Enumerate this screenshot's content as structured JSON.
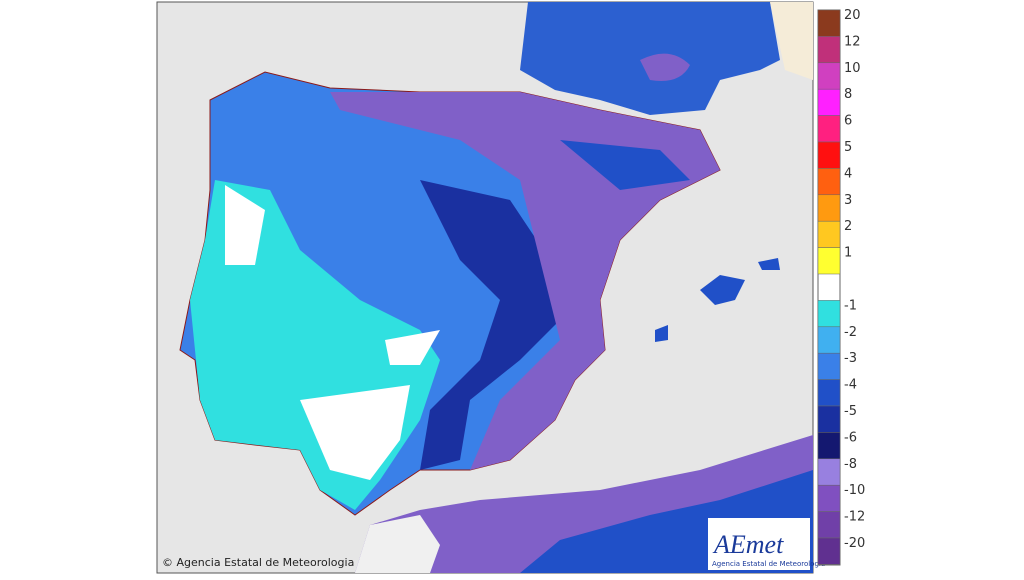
{
  "map": {
    "copyright": "© Agencia Estatal de Meteorologia",
    "logo": {
      "name": "AEmet",
      "subtitle": "Agencia Estatal de Meteorología"
    }
  },
  "legend": {
    "items": [
      {
        "label": "20",
        "color": "#8b3a1e"
      },
      {
        "label": "12",
        "color": "#c0307a"
      },
      {
        "label": "10",
        "color": "#d040c0"
      },
      {
        "label": "8",
        "color": "#ff20ff"
      },
      {
        "label": "6",
        "color": "#ff2080"
      },
      {
        "label": "5",
        "color": "#ff1010"
      },
      {
        "label": "4",
        "color": "#ff6010"
      },
      {
        "label": "3",
        "color": "#ff9a10"
      },
      {
        "label": "2",
        "color": "#ffc820"
      },
      {
        "label": "1",
        "color": "#ffff30"
      },
      {
        "label": "-1",
        "color": "#30e0e0"
      },
      {
        "label": "-2",
        "color": "#40b0f0"
      },
      {
        "label": "-3",
        "color": "#3a80e8"
      },
      {
        "label": "-4",
        "color": "#2050c8"
      },
      {
        "label": "-5",
        "color": "#1a30a0"
      },
      {
        "label": "-6",
        "color": "#141870"
      },
      {
        "label": "-8",
        "color": "#9880e0"
      },
      {
        "label": "-10",
        "color": "#8050c0"
      },
      {
        "label": "-12",
        "color": "#7040a8"
      },
      {
        "label": "-20",
        "color": "#603090"
      }
    ]
  }
}
